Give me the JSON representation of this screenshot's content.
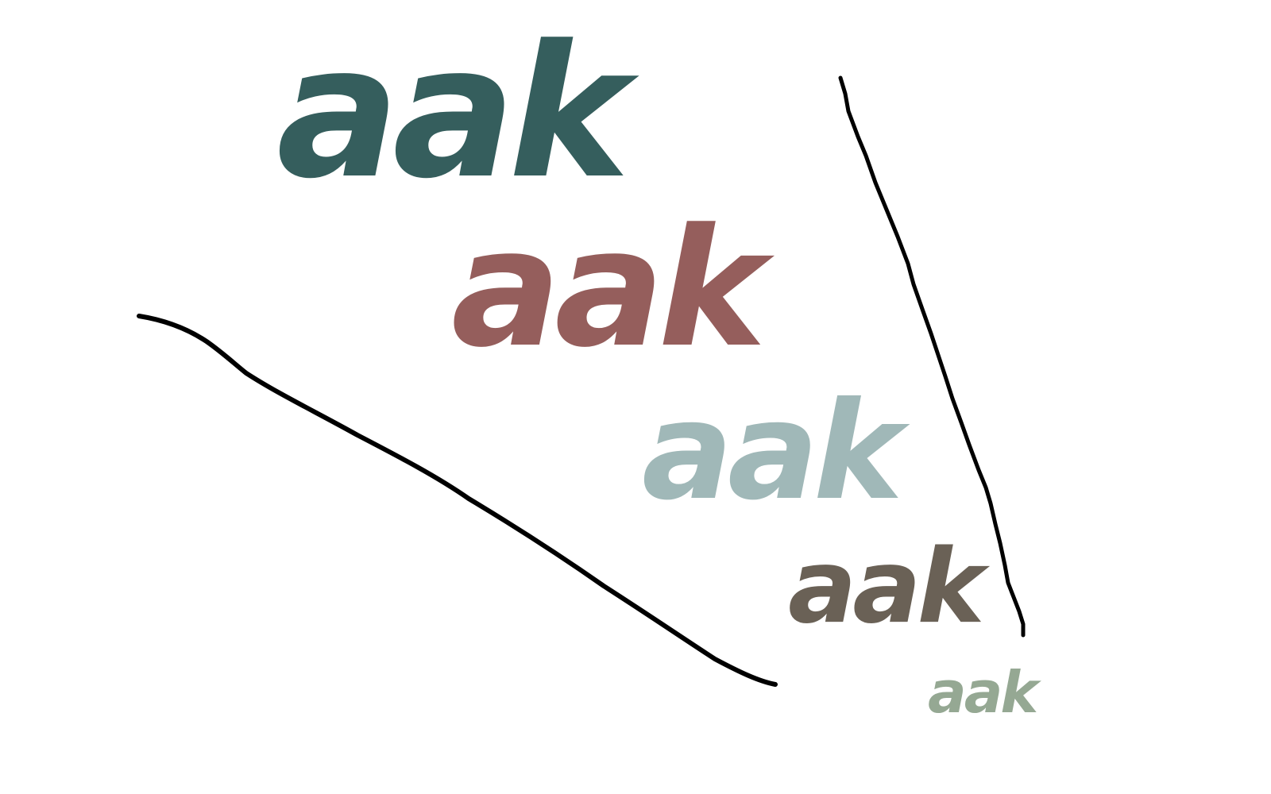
{
  "words": [
    {
      "text": "aak",
      "color": "#355e5d"
    },
    {
      "text": "aak",
      "color": "#955e5c"
    },
    {
      "text": "aak",
      "color": "#a0b8b8"
    },
    {
      "text": "aak",
      "color": "#6a6156"
    },
    {
      "text": "aak",
      "color": "#95a893"
    }
  ],
  "stroke_color": "#000000"
}
